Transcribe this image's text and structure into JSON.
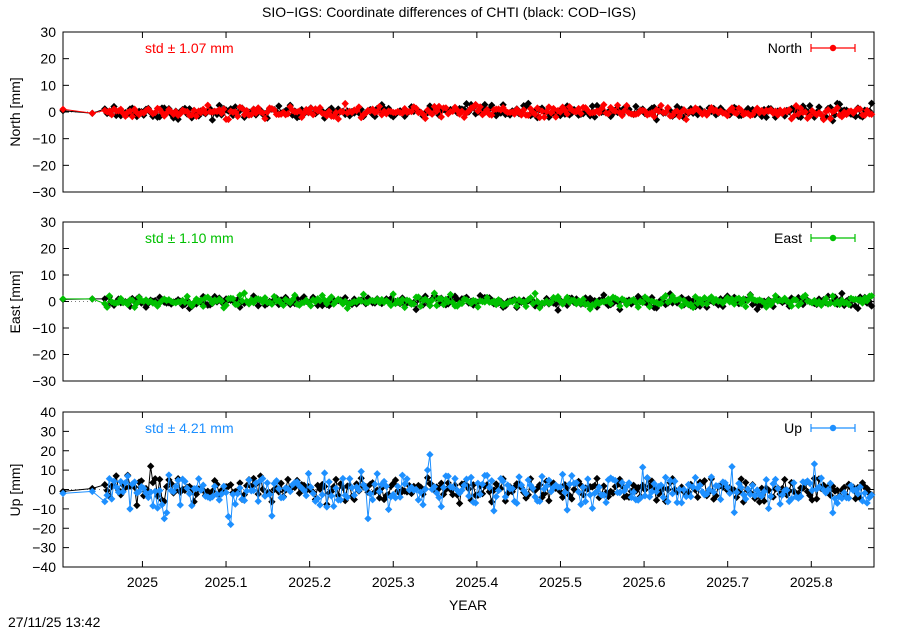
{
  "title": "SIO−IGS: Coordinate differences of CHTI (black: COD−IGS)",
  "timestamp": "27/11/25 13:42",
  "xlabel": "YEAR",
  "colors": {
    "north": "#ff0000",
    "east": "#00c000",
    "up": "#1e90ff",
    "reference": "#000000"
  },
  "chart_data": [
    {
      "type": "line",
      "name": "North",
      "ylabel": "North [mm]",
      "std_label": "std ± 1.07 mm",
      "legend": "North",
      "legend_position": "top-right",
      "color": "#ff0000",
      "xlim": [
        2024.905,
        2025.875
      ],
      "ylim": [
        -30,
        30
      ],
      "yticks": [
        30,
        20,
        10,
        0,
        -10,
        -20,
        -30
      ],
      "ytick_labels": [
        "30",
        "20",
        "10",
        "0",
        "−10",
        "−20",
        "−30"
      ],
      "xticks": [
        2025.0,
        2025.1,
        2025.2,
        2025.3,
        2025.4,
        2025.5,
        2025.6,
        2025.7,
        2025.8
      ],
      "series_anchor": [
        [
          2024.905,
          1.0
        ],
        [
          2024.94,
          -0.5
        ]
      ],
      "reference_anchor": [
        [
          2024.905,
          0.5
        ],
        [
          2024.94,
          -0.5
        ]
      ],
      "series_amplitude": 1.07,
      "reference_amplitude": 1.2,
      "grid": false
    },
    {
      "type": "line",
      "name": "East",
      "ylabel": "East [mm]",
      "std_label": "std ± 1.10 mm",
      "legend": "East",
      "legend_position": "top-right",
      "color": "#00c000",
      "xlim": [
        2024.905,
        2025.875
      ],
      "ylim": [
        -30,
        30
      ],
      "yticks": [
        30,
        20,
        10,
        0,
        -10,
        -20,
        -30
      ],
      "ytick_labels": [
        "30",
        "20",
        "10",
        "0",
        "−10",
        "−20",
        "−30"
      ],
      "xticks": [
        2025.0,
        2025.1,
        2025.2,
        2025.3,
        2025.4,
        2025.5,
        2025.6,
        2025.7,
        2025.8
      ],
      "series_anchor": [
        [
          2024.905,
          1.0
        ],
        [
          2024.94,
          1.0
        ]
      ],
      "reference_anchor": [
        [
          2024.905,
          0.8
        ],
        [
          2024.94,
          1.0
        ]
      ],
      "series_amplitude": 1.1,
      "reference_amplitude": 1.1,
      "grid": false
    },
    {
      "type": "line",
      "name": "Up",
      "ylabel": "Up [mm]",
      "std_label": "std ± 4.21 mm",
      "legend": "Up",
      "legend_position": "top-right",
      "color": "#1e90ff",
      "xlim": [
        2024.905,
        2025.875
      ],
      "ylim": [
        -40,
        40
      ],
      "yticks": [
        40,
        30,
        20,
        10,
        0,
        -10,
        -20,
        -30,
        -40
      ],
      "ytick_labels": [
        "40",
        "30",
        "20",
        "10",
        "0",
        "−10",
        "−20",
        "−30",
        "−40"
      ],
      "xticks": [
        2025.0,
        2025.1,
        2025.2,
        2025.3,
        2025.4,
        2025.5,
        2025.6,
        2025.7,
        2025.8
      ],
      "series_anchor": [
        [
          2024.905,
          -2.0
        ],
        [
          2024.94,
          -1.0
        ]
      ],
      "reference_anchor": [
        [
          2024.905,
          -1.0
        ],
        [
          2024.94,
          0.5
        ]
      ],
      "series_amplitude": 4.21,
      "reference_amplitude": 3.0,
      "spikes": [
        [
          2025.105,
          -18
        ],
        [
          2025.103,
          -14
        ],
        [
          2025.345,
          18
        ],
        [
          2025.34,
          10
        ],
        [
          2025.27,
          -15
        ],
        [
          2025.025,
          -15
        ],
        [
          2025.03,
          -12
        ],
        [
          2025.825,
          -12
        ],
        [
          2024.985,
          -10
        ]
      ],
      "reference_spikes": [
        [
          2025.01,
          12
        ],
        [
          2024.97,
          7
        ]
      ],
      "grid": false
    }
  ],
  "xtick_labels": [
    "2025",
    "2025.1",
    "2025.2",
    "2025.3",
    "2025.4",
    "2025.5",
    "2025.6",
    "2025.7",
    "2025.8"
  ]
}
